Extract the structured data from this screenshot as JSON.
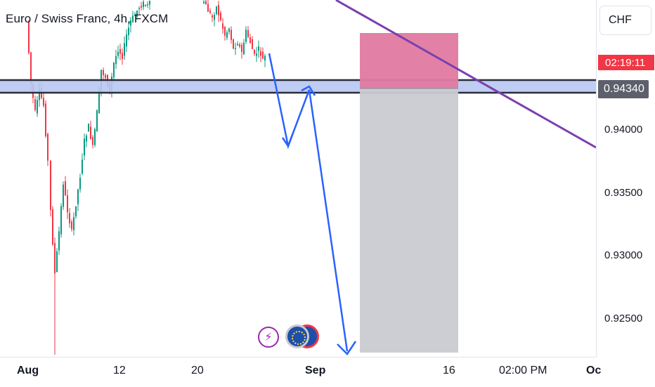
{
  "chart_data": {
    "type": "candlestick",
    "title": "Euro / Swiss Franc, 4h, FXCM",
    "currency": "CHF",
    "countdown": "02:19:11",
    "current_price": "0.94340",
    "y_ticks": [
      "0.94000",
      "0.93500",
      "0.93000",
      "0.92500"
    ],
    "x_ticks": [
      {
        "label": "Aug",
        "bold": true
      },
      {
        "label": "12",
        "bold": false
      },
      {
        "label": "20",
        "bold": false
      },
      {
        "label": "Sep",
        "bold": true
      },
      {
        "label": "16",
        "bold": false
      },
      {
        "label": "02:00 PM",
        "bold": false
      },
      {
        "label": "Oc",
        "bold": true
      }
    ],
    "ylim": [
      0.9222,
      0.9507
    ],
    "support_zone": [
      0.9429,
      0.944
    ],
    "short_position": {
      "entry": 0.944,
      "stop": 0.948,
      "target": 0.9222
    },
    "trendline": [
      [
        0.9507,
        "Aug 28"
      ],
      [
        0.9389,
        "Oct"
      ]
    ],
    "projection_path": [
      0.9463,
      0.9389,
      0.9444,
      0.9222
    ],
    "colors": {
      "up": "#089981",
      "down": "#f23645",
      "zone": "#b8c6f2",
      "trendline": "#7b3fb0",
      "projection": "#2962ff",
      "profit": "#c9cbd1",
      "stop": "#e07aa0"
    }
  }
}
